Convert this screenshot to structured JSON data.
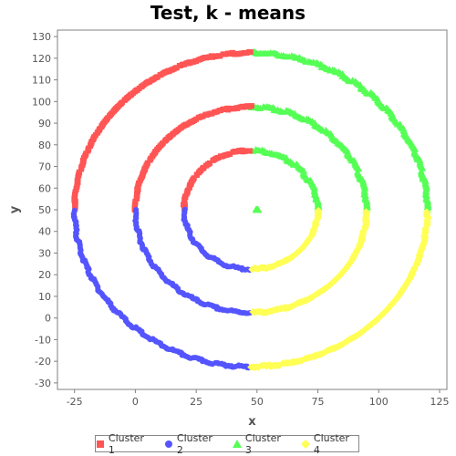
{
  "chart_data": {
    "type": "scatter",
    "title": "Test, k - means",
    "xlabel": "x",
    "ylabel": "y",
    "xlim": [
      -32,
      128
    ],
    "ylim": [
      -33,
      133
    ],
    "xticks": [
      -25,
      0,
      25,
      50,
      75,
      100,
      125
    ],
    "yticks": [
      -30,
      -20,
      -10,
      0,
      10,
      20,
      30,
      40,
      50,
      60,
      70,
      80,
      90,
      100,
      110,
      120,
      130
    ],
    "grid": false,
    "legend_position": "bottom",
    "center": [
      47.5,
      50
    ],
    "rings": [
      {
        "radius": 27.5,
        "note_x_right_end": 75
      },
      {
        "radius": 47.5,
        "note_x_right_end": 95
      },
      {
        "radius": 72.5,
        "note_x_right_end": 120
      }
    ],
    "center_blob": {
      "x": 50,
      "y": 50,
      "series": "Cluster 3"
    },
    "series": [
      {
        "name": "Cluster 1",
        "color": "#ff5555",
        "marker": "square",
        "quadrant": "upper-left"
      },
      {
        "name": "Cluster 2",
        "color": "#5555ff",
        "marker": "circle",
        "quadrant": "lower-left"
      },
      {
        "name": "Cluster 3",
        "color": "#55ff55",
        "marker": "triangle",
        "quadrant": "upper-right"
      },
      {
        "name": "Cluster 4",
        "color": "#ffff55",
        "marker": "diamond",
        "quadrant": "lower-right"
      }
    ]
  }
}
